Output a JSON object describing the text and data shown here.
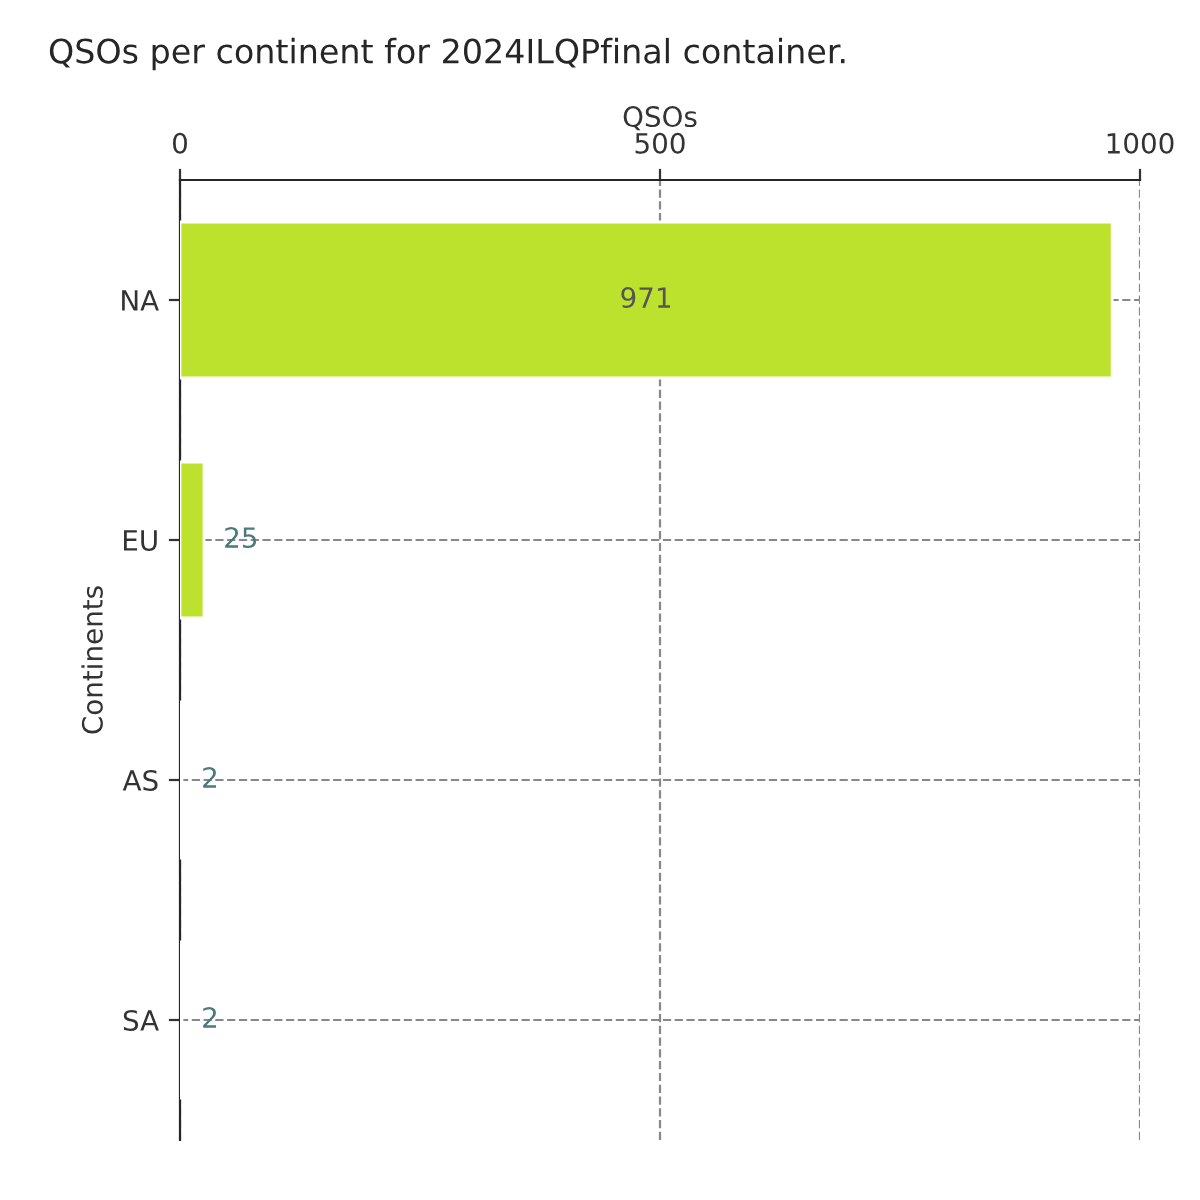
{
  "chart_data": {
    "type": "bar",
    "orientation": "horizontal",
    "title": "QSOs per continent for 2024ILQPfinal container.",
    "xlabel": "QSOs",
    "ylabel": "Continents",
    "categories": [
      "NA",
      "EU",
      "AS",
      "SA"
    ],
    "values": [
      971,
      25,
      2,
      2
    ],
    "color": "#bde22e",
    "xlim": [
      0,
      1000
    ],
    "xticks": [
      0,
      500,
      1000
    ],
    "grid": true,
    "data_labels": true
  }
}
